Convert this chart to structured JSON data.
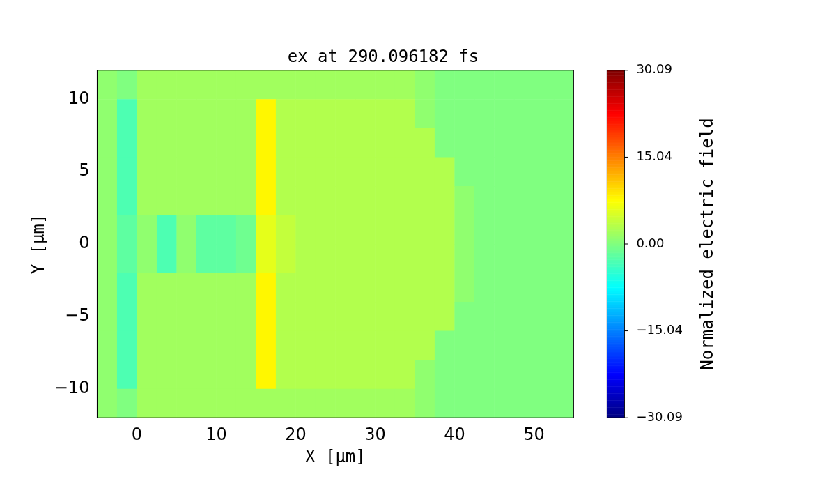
{
  "chart_data": {
    "type": "heatmap",
    "title": "ex at 290.096182 fs",
    "xlabel": "X [μm]",
    "ylabel": "Y [μm]",
    "clabel": "Normalized electric field",
    "x": [
      -3.75,
      -1.25,
      1.25,
      3.75,
      6.25,
      8.75,
      11.25,
      13.75,
      16.25,
      18.75,
      21.25,
      23.75,
      26.25,
      28.75,
      31.25,
      33.75,
      36.25,
      38.75,
      41.25,
      43.75,
      46.25,
      48.75,
      51.25,
      53.75
    ],
    "xlim": [
      -5,
      55
    ],
    "xticks": [
      0,
      10,
      20,
      30,
      40,
      50
    ],
    "ylim": [
      -12,
      12
    ],
    "yticks": [
      -10,
      -5,
      0,
      5,
      10
    ],
    "clim": [
      -30.09,
      30.09
    ],
    "cticks": [
      -30.09,
      -15.04,
      {
        "value": 0,
        "label": "0.00"
      },
      15.04,
      30.09
    ],
    "cells": [
      [
        1,
        0,
        2,
        2,
        2,
        2,
        2,
        2,
        2,
        2,
        2,
        2,
        2,
        2,
        2,
        2,
        1,
        0,
        0,
        0,
        0,
        0,
        0,
        0
      ],
      [
        1,
        -3,
        2,
        2,
        2,
        2,
        2,
        2,
        8,
        3,
        3,
        3,
        3,
        3,
        3,
        3,
        1,
        0,
        0,
        0,
        0,
        0,
        0,
        0
      ],
      [
        1,
        -3,
        2,
        2,
        2,
        2,
        2,
        2,
        8,
        3,
        3,
        3,
        3,
        3,
        3,
        3,
        3,
        0,
        0,
        0,
        0,
        0,
        0,
        0
      ],
      [
        1,
        -3,
        2,
        2,
        2,
        2,
        2,
        2,
        8,
        3,
        3,
        3,
        3,
        3,
        3,
        3,
        3,
        3,
        0,
        0,
        0,
        0,
        0,
        0
      ],
      [
        1,
        -3,
        2,
        2,
        2,
        2,
        2,
        2,
        8,
        3,
        3,
        3,
        3,
        3,
        3,
        3,
        3,
        3,
        1,
        0,
        0,
        0,
        0,
        0
      ],
      [
        1,
        -2,
        1,
        -3,
        1,
        -2,
        -2,
        -1,
        6,
        4,
        3,
        3,
        3,
        3,
        3,
        3,
        3,
        3,
        1,
        0,
        0,
        0,
        0,
        0
      ],
      [
        1,
        -2,
        1,
        -3,
        1,
        -2,
        -2,
        -1,
        6,
        4,
        3,
        3,
        3,
        3,
        3,
        3,
        3,
        3,
        1,
        0,
        0,
        0,
        0,
        0
      ],
      [
        1,
        -3,
        2,
        2,
        2,
        2,
        2,
        2,
        8,
        3,
        3,
        3,
        3,
        3,
        3,
        3,
        3,
        3,
        1,
        0,
        0,
        0,
        0,
        0
      ],
      [
        1,
        -3,
        2,
        2,
        2,
        2,
        2,
        2,
        8,
        3,
        3,
        3,
        3,
        3,
        3,
        3,
        3,
        3,
        0,
        0,
        0,
        0,
        0,
        0
      ],
      [
        1,
        -3,
        2,
        2,
        2,
        2,
        2,
        2,
        8,
        3,
        3,
        3,
        3,
        3,
        3,
        3,
        3,
        0,
        0,
        0,
        0,
        0,
        0,
        0
      ],
      [
        1,
        -3,
        2,
        2,
        2,
        2,
        2,
        2,
        8,
        3,
        3,
        3,
        3,
        3,
        3,
        3,
        1,
        0,
        0,
        0,
        0,
        0,
        0,
        0
      ],
      [
        1,
        0,
        2,
        2,
        2,
        2,
        2,
        2,
        2,
        2,
        2,
        2,
        2,
        2,
        2,
        2,
        1,
        0,
        0,
        0,
        0,
        0,
        0,
        0
      ]
    ]
  }
}
